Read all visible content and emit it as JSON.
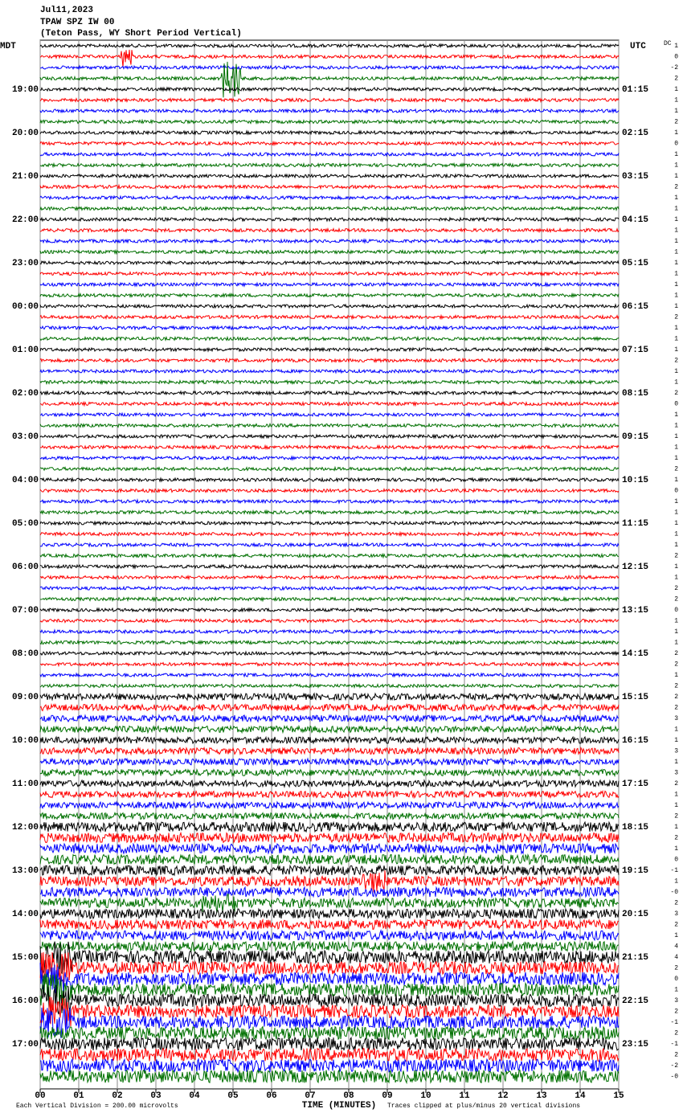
{
  "chart_data": {
    "type": "helicorder",
    "title": "Jul11,2023",
    "subtitle": "TPAW SPZ IW 00",
    "caption": "(Teton Pass, WY Short Period Vertical)",
    "left_zone": "MDT",
    "right_zone": "UTC",
    "dc_header": "DC",
    "x_label": "TIME (MINUTES)",
    "scale_note": "Each Vertical Division =  200.00 microvolts",
    "clip_note": "Traces clipped at plus/minus 20 vertical divisions",
    "colors": [
      "#000000",
      "#ff0000",
      "#0000ff",
      "#007000"
    ],
    "left_labels": [
      null,
      "19:00",
      "20:00",
      "21:00",
      "22:00",
      "23:00",
      "00:00",
      "01:00",
      "02:00",
      "03:00",
      "04:00",
      "05:00",
      "06:00",
      "07:00",
      "08:00",
      "09:00",
      "10:00",
      "11:00",
      "12:00",
      "13:00",
      "14:00",
      "15:00",
      "16:00",
      "17:00"
    ],
    "right_labels": [
      null,
      "01:15",
      "02:15",
      "03:15",
      "04:15",
      "05:15",
      "06:15",
      "07:15",
      "08:15",
      "09:15",
      "10:15",
      "11:15",
      "12:15",
      "13:15",
      "14:15",
      "15:15",
      "16:15",
      "17:15",
      "18:15",
      "19:15",
      "20:15",
      "21:15",
      "22:15",
      "23:15"
    ],
    "dc_offsets": [
      "1",
      "0",
      "-2",
      "2",
      "1",
      "1",
      "1",
      "2",
      "1",
      "0",
      "1",
      "1",
      "1",
      "2",
      "1",
      "1",
      "1",
      "1",
      "1",
      "1",
      "1",
      "1",
      "1",
      "1",
      "1",
      "2",
      "1",
      "1",
      "1",
      "2",
      "1",
      "1",
      "2",
      "0",
      "1",
      "1",
      "1",
      "1",
      "1",
      "2",
      "1",
      "0",
      "1",
      "1",
      "1",
      "1",
      "1",
      "2",
      "1",
      "1",
      "2",
      "2",
      "0",
      "1",
      "1",
      "1",
      "2",
      "2",
      "1",
      "2",
      "2",
      "2",
      "3",
      "1",
      "1",
      "3",
      "1",
      "3",
      "2",
      "1",
      "1",
      "2",
      "1",
      "2",
      "1",
      "0",
      "-1",
      "1",
      "-0",
      "2",
      "3",
      "2",
      "1",
      "4",
      "4",
      "2",
      "0",
      "1",
      "3",
      "2",
      "-1",
      "2",
      "-1",
      "2",
      "-2",
      "-0"
    ],
    "xlim": [
      0,
      15
    ],
    "xticks": [
      {
        "value": 0,
        "label": "00"
      },
      {
        "value": 1,
        "label": "01"
      },
      {
        "value": 2,
        "label": "02"
      },
      {
        "value": 3,
        "label": "03"
      },
      {
        "value": 4,
        "label": "04"
      },
      {
        "value": 5,
        "label": "05"
      },
      {
        "value": 6,
        "label": "06"
      },
      {
        "value": 7,
        "label": "07"
      },
      {
        "value": 8,
        "label": "08"
      },
      {
        "value": 9,
        "label": "09"
      },
      {
        "value": 10,
        "label": "10"
      },
      {
        "value": 11,
        "label": "11"
      },
      {
        "value": 12,
        "label": "12"
      },
      {
        "value": 13,
        "label": "13"
      },
      {
        "value": 14,
        "label": "14"
      },
      {
        "value": 15,
        "label": "15"
      }
    ],
    "grid": true
  }
}
